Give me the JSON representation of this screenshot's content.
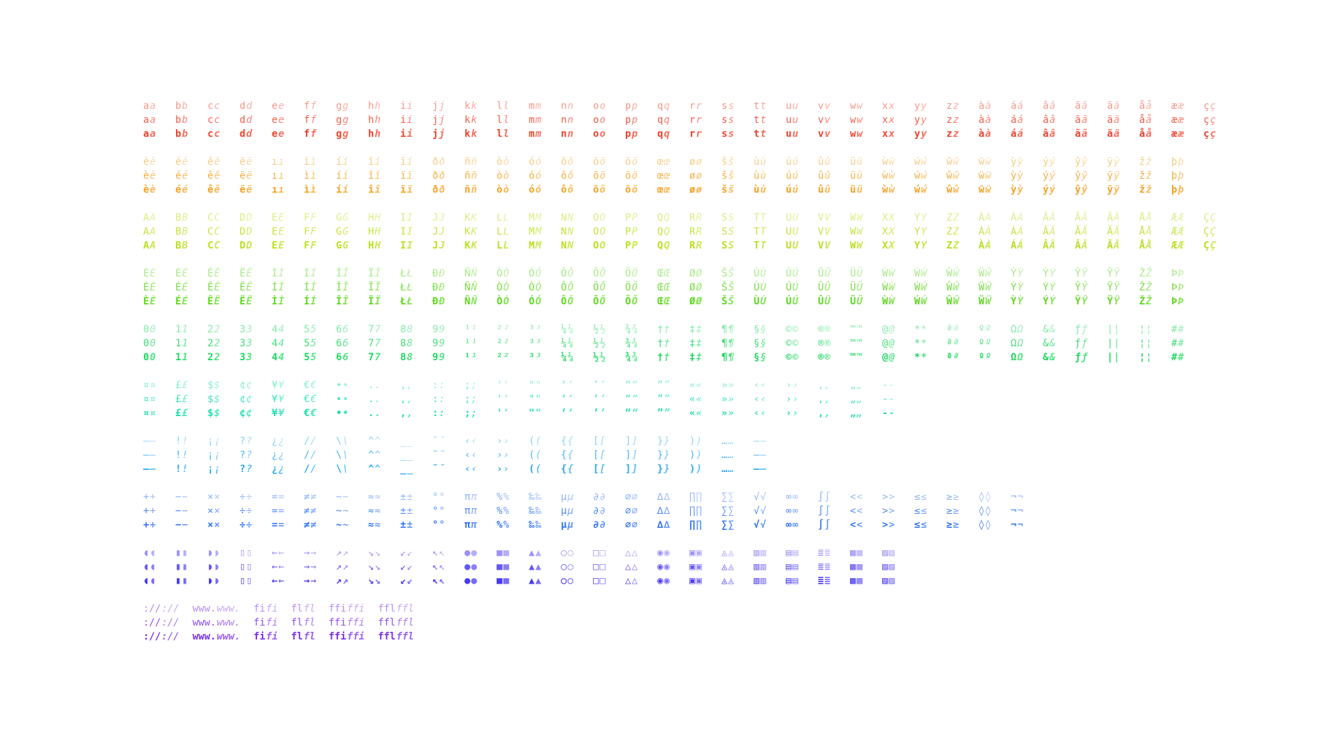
{
  "specimen": {
    "rows": [
      {
        "color": "#f0402a",
        "glyphs": [
          "a",
          "b",
          "c",
          "d",
          "e",
          "f",
          "g",
          "h",
          "i",
          "j",
          "k",
          "l",
          "m",
          "n",
          "o",
          "p",
          "q",
          "r",
          "s",
          "t",
          "u",
          "v",
          "w",
          "x",
          "y",
          "z",
          "à",
          "á",
          "â",
          "ã",
          "ä",
          "å",
          "æ",
          "ç"
        ]
      },
      {
        "color": "#f5a020",
        "glyphs": [
          "è",
          "é",
          "ê",
          "ë",
          "ı",
          "ì",
          "í",
          "î",
          "ï",
          "ð",
          "ñ",
          "ò",
          "ó",
          "ô",
          "õ",
          "ö",
          "œ",
          "ø",
          "š",
          "ù",
          "ú",
          "û",
          "ü",
          "ẁ",
          "ẃ",
          "ŵ",
          "ẅ",
          "ỳ",
          "ý",
          "ŷ",
          "ÿ",
          "ž",
          "þ"
        ]
      },
      {
        "color": "#b8e01c",
        "glyphs": [
          "A",
          "B",
          "C",
          "D",
          "E",
          "F",
          "G",
          "H",
          "I",
          "J",
          "K",
          "L",
          "M",
          "N",
          "O",
          "P",
          "Q",
          "R",
          "S",
          "T",
          "U",
          "V",
          "W",
          "X",
          "Y",
          "Z",
          "À",
          "Á",
          "Â",
          "Ã",
          "Ä",
          "Å",
          "Æ",
          "Ç"
        ]
      },
      {
        "color": "#5ed81e",
        "glyphs": [
          "È",
          "É",
          "Ê",
          "Ë",
          "Ì",
          "Í",
          "Î",
          "Ï",
          "Ł",
          "Ð",
          "Ñ",
          "Ò",
          "Ó",
          "Ô",
          "Õ",
          "Ö",
          "Œ",
          "Ø",
          "Š",
          "Ù",
          "Ú",
          "Û",
          "Ü",
          "Ẁ",
          "Ẃ",
          "Ŵ",
          "Ẅ",
          "Ỳ",
          "Ý",
          "Ŷ",
          "Ÿ",
          "Ž",
          "Þ"
        ]
      },
      {
        "color": "#1ed860",
        "glyphs": [
          "0",
          "1",
          "2",
          "3",
          "4",
          "5",
          "6",
          "7",
          "8",
          "9",
          "¹",
          "²",
          "³",
          "¼",
          "½",
          "¾",
          "†",
          "‡",
          "¶",
          "§",
          "©",
          "®",
          "™",
          "@",
          "*",
          "ª",
          "º",
          "Ω",
          "&",
          "ƒ",
          "|",
          "¦",
          "#"
        ]
      },
      {
        "color": "#1edcae",
        "glyphs": [
          "¤",
          "£",
          "$",
          "¢",
          "¥",
          "€",
          "•",
          ".",
          ",",
          ":",
          ";",
          "'",
          "\"",
          "‘",
          "’",
          "“",
          "”",
          "«",
          "»",
          "‹",
          "›",
          "‚",
          "„",
          "-"
        ]
      },
      {
        "color": "#29a8f0",
        "glyphs": [
          "–",
          "!",
          "¡",
          "?",
          "¿",
          "/",
          "\\",
          "^",
          "_",
          "¯",
          "‹",
          "›",
          "(",
          "{",
          "[",
          "]",
          "}",
          ")",
          "…",
          "—"
        ]
      },
      {
        "color": "#2f72f2",
        "glyphs": [
          "+",
          "−",
          "×",
          "÷",
          "=",
          "≠",
          "~",
          "≈",
          "±",
          "°",
          "π",
          "%",
          "‰",
          "µ",
          "∂",
          "⌀",
          "∆",
          "∏",
          "∑",
          "√",
          "∞",
          "∫",
          "<",
          ">",
          "≤",
          "≥",
          "◊",
          "¬"
        ]
      },
      {
        "color": "#4a3af0",
        "glyphs": [
          "◖",
          "▮",
          "◗",
          "▯",
          "←",
          "→",
          "↗",
          "↘",
          "↙",
          "↖",
          "●",
          "■",
          "▲",
          "○",
          "□",
          "△",
          "◉",
          "▣",
          "◬",
          "▥",
          "▤",
          "≣",
          "▩",
          "▨"
        ]
      },
      {
        "color": "#7a30f0",
        "glyphs": [
          "://",
          "www.",
          "fi",
          "fl",
          "ffi",
          "ffl"
        ]
      }
    ]
  }
}
